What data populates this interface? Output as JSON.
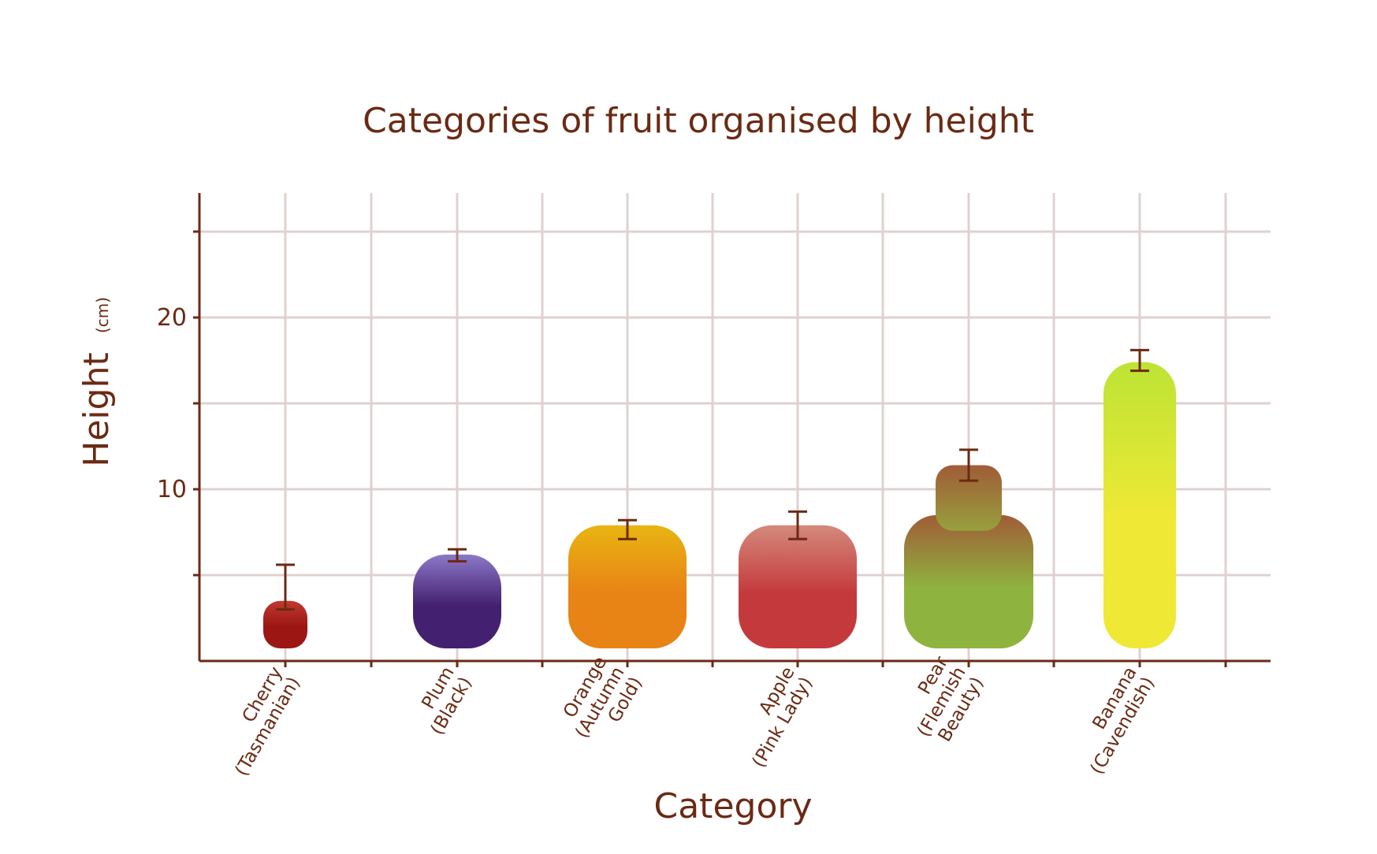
{
  "chart_data": {
    "type": "bar",
    "title": "Categories of fruit organised by height",
    "xlabel": "Category",
    "ylabel": "Height",
    "ylabel_unit": "(cm)",
    "ylim": [
      0,
      25
    ],
    "yticks": [
      5,
      10,
      15,
      20,
      25
    ],
    "ytick_labels": [
      "",
      "10",
      "",
      "20",
      ""
    ],
    "grid": true,
    "categories": [
      [
        "Cherry",
        "(Tasmanian)"
      ],
      [
        "Plum",
        "(Black)"
      ],
      [
        "Orange",
        "(Autumn",
        "Gold)"
      ],
      [
        "Apple",
        "(Pink Lady)"
      ],
      [
        "Pear",
        "(Flemish",
        "Beauty)"
      ],
      [
        "Banana",
        "(Cavendish)"
      ]
    ],
    "values": [
      3.5,
      6.2,
      7.9,
      7.9,
      11.4,
      17.4
    ],
    "error_low": [
      3.0,
      5.8,
      7.1,
      7.1,
      10.5,
      16.9
    ],
    "error_high": [
      5.6,
      6.5,
      8.2,
      8.7,
      12.3,
      18.1
    ],
    "colors": [
      [
        "#c13a2f",
        "#9c1614"
      ],
      [
        "#8c78c8",
        "#432070"
      ],
      [
        "#e8b512",
        "#e88316"
      ],
      [
        "#d4897c",
        "#c43a3c"
      ],
      [
        "#a05c37",
        "#8eb33f"
      ],
      [
        "#bde335",
        "#efe935"
      ]
    ],
    "text_color": "#6b2a14",
    "grid_color": "#e0d0d0"
  }
}
